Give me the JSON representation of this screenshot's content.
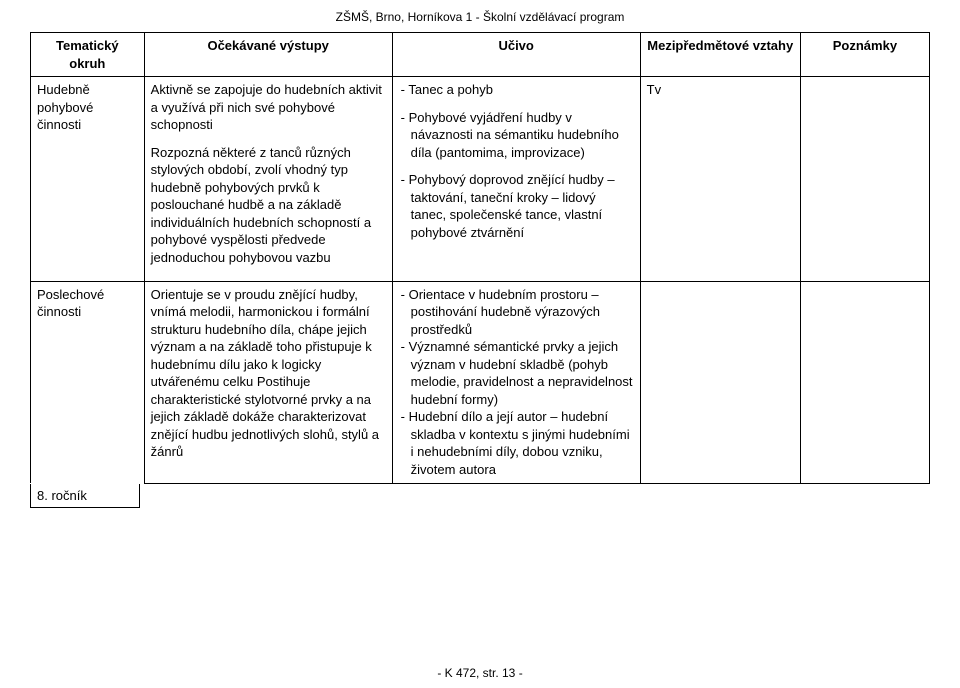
{
  "header_text": "ZŠMŠ, Brno, Horníkova 1 - Školní vzdělávací program",
  "footer_text": "- K 472, str. 13 -",
  "grade_label": "8. ročník",
  "columns": [
    "Tematický okruh",
    "Očekávané výstupy",
    "Učivo",
    "Mezipředmětové vztahy",
    "Poznámky"
  ],
  "rows": [
    {
      "okruh": "Hudebně pohybové činnosti",
      "vystupy": [
        "Aktivně se zapojuje do hudebních aktivit a využívá při nich své pohybové schopnosti",
        "Rozpozná některé z tanců různých stylových období, zvolí vhodný typ hudebně pohybových prvků k poslouchané hudbě a na základě individuálních hudebních schopností a pohybové vyspělosti předvede jednoduchou pohybovou vazbu"
      ],
      "ucivo": [
        "- Tanec a pohyb",
        "- Pohybové vyjádření hudby v návaznosti na sémantiku hudebního díla (pantomima, improvizace)",
        "- Pohybový doprovod znějící hudby – taktování, taneční kroky – lidový tanec, společenské tance, vlastní pohybové ztvárnění"
      ],
      "vztahy": "Tv"
    },
    {
      "okruh": "Poslechové činnosti",
      "vystupy": [
        "Orientuje se v proudu znějící hudby, vnímá melodii, harmonickou i formální strukturu hudebního díla, chápe jejich význam a na základě toho přistupuje k hudebnímu dílu jako k logicky utvářenému celku Postihuje charakteristické stylotvorné prvky a na jejich základě dokáže charakterizovat znějící hudbu jednotlivých slohů, stylů a žánrů"
      ],
      "ucivo": [
        "- Orientace v hudebním prostoru – postihování hudebně výrazových prostředků",
        "- Významné sémantické prvky a jejich význam v hudební skladbě (pohyb melodie, pravidelnost a nepravidelnost hudební formy)",
        "- Hudební dílo a její autor – hudební skladba v kontextu s jinými hudebními i nehudebními díly, dobou vzniku, životem autora"
      ],
      "vztahy": ""
    }
  ]
}
